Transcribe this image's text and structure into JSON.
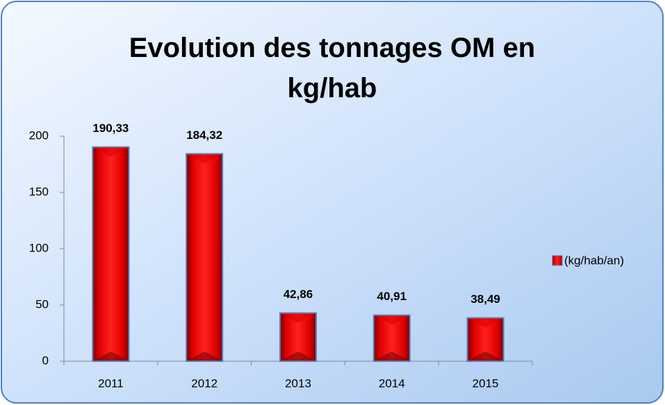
{
  "chart_data": {
    "type": "bar",
    "title": "Evolution des tonnages OM en kg/hab",
    "categories": [
      "2011",
      "2012",
      "2013",
      "2014",
      "2015"
    ],
    "series": [
      {
        "name": "(kg/hab/an)",
        "color": "#e00000",
        "values": [
          190.33,
          184.32,
          42.86,
          40.91,
          38.49
        ],
        "value_labels": [
          "190,33",
          "184,32",
          "42,86",
          "40,91",
          "38,49"
        ]
      }
    ],
    "ylim": [
      0,
      200
    ],
    "yticks": [
      0,
      50,
      100,
      150,
      200
    ],
    "grid": false,
    "legend": "right"
  }
}
